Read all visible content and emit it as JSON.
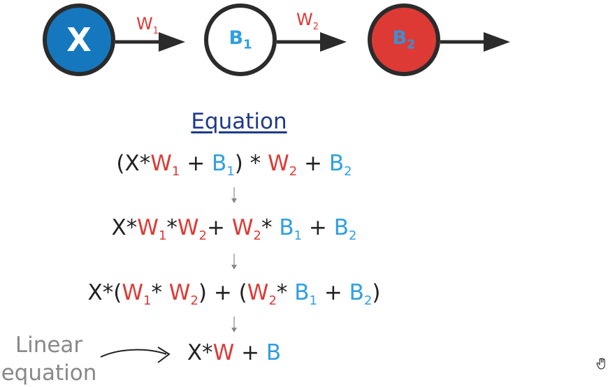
{
  "nodes": {
    "x": {
      "label": "X"
    },
    "b1": {
      "label": "B",
      "sub": "1"
    },
    "b2": {
      "label": "B",
      "sub": "2"
    }
  },
  "weights": {
    "w1": {
      "label": "W",
      "sub": "1"
    },
    "w2": {
      "label": "W",
      "sub": "2"
    }
  },
  "equation": {
    "title": "Equation",
    "line1": {
      "open": "(X*",
      "w1": "W",
      "w1_sub": "1",
      "plus1": " + ",
      "b1": "B",
      "b1_sub": "1",
      "close": ") * ",
      "w2": "W",
      "w2_sub": "2",
      "plus2": " + ",
      "b2": "B",
      "b2_sub": "2"
    },
    "line2": {
      "x": "X*",
      "w1": "W",
      "w1_sub": "1",
      "star": "*",
      "w2": "W",
      "w2_sub": "2",
      "plus1": "+ ",
      "w2b": "W",
      "w2b_sub": "2",
      "star2": "* ",
      "b1": "B",
      "b1_sub": "1",
      "plus2": " + ",
      "b2": "B",
      "b2_sub": "2"
    },
    "line3": {
      "x": "X*(",
      "w1": "W",
      "w1_sub": "1",
      "star": "* ",
      "w2": "W",
      "w2_sub": "2",
      "mid": ") + (",
      "w2b": "W",
      "w2b_sub": "2",
      "star2": "* ",
      "b1": "B",
      "b1_sub": "1",
      "plus": " + ",
      "b2": "B",
      "b2_sub": "2",
      "close": ")"
    },
    "line4": {
      "x": "X*",
      "w": "W",
      "plus": " + ",
      "b": "B"
    }
  },
  "annotation": {
    "line1": "Linear",
    "line2": "equation"
  },
  "colors": {
    "weight": "#dd3a36",
    "bias": "#2f9fe0",
    "input_node": "#1578be",
    "output_node": "#dd3a36",
    "title": "#1f3a8a"
  },
  "icons": {
    "cursor": "hand-cursor-icon"
  }
}
